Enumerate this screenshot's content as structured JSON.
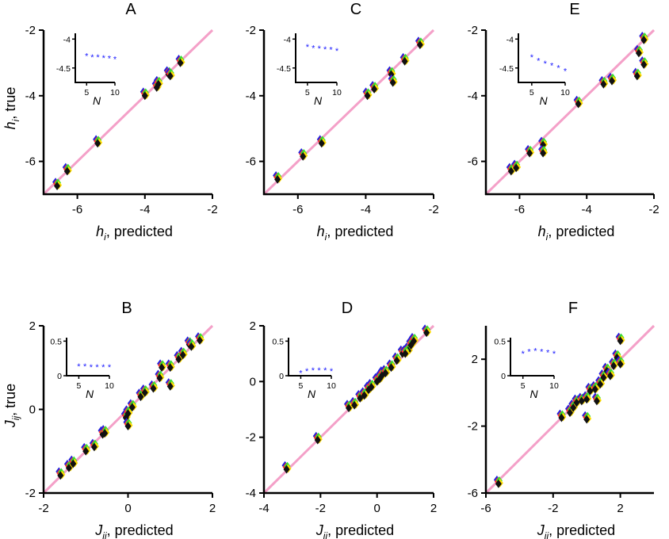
{
  "figure": {
    "colors": {
      "identity_line": "#f4a0c8",
      "marker_colors": [
        "#2222dd",
        "#ff3333",
        "#33dd33",
        "#ffdd00",
        "#111111"
      ],
      "inset_stars": "#1a1aff"
    }
  },
  "chart_data": [
    {
      "panel": "A",
      "type": "scatter",
      "xlabel": {
        "main": "h",
        "sub": "i",
        "suffix": ", predicted"
      },
      "ylabel": {
        "main": "h",
        "sub": "i",
        "suffix": ", true"
      },
      "xlim": [
        -7,
        -2
      ],
      "ylim": [
        -7,
        -2
      ],
      "xticks": [
        -6,
        -4,
        -2
      ],
      "yticks": [
        -6,
        -4,
        -2
      ],
      "tick_labels_x": [
        "-6",
        "-4",
        "-2"
      ],
      "tick_labels_y": [
        "-6",
        "-4",
        "-2"
      ],
      "identity_line": true,
      "points": [
        {
          "x": -6.6,
          "y": -6.75
        },
        {
          "x": -6.3,
          "y": -6.3
        },
        {
          "x": -5.4,
          "y": -5.45
        },
        {
          "x": -4.0,
          "y": -4.0
        },
        {
          "x": -3.65,
          "y": -3.75
        },
        {
          "x": -3.6,
          "y": -3.65
        },
        {
          "x": -3.3,
          "y": -3.35
        },
        {
          "x": -3.25,
          "y": -3.4
        },
        {
          "x": -2.95,
          "y": -3.0
        }
      ],
      "inset": {
        "xlim": [
          3,
          10
        ],
        "ylim": [
          -4.75,
          -3.9
        ],
        "xticks": [
          5,
          10
        ],
        "yticks": [
          -4,
          -4.5
        ],
        "tick_labels_x": [
          "5",
          "10"
        ],
        "tick_labels_y": [
          "-4",
          "-4.5"
        ],
        "xlabel": "N",
        "x": [
          5,
          6,
          7,
          8,
          9,
          10
        ],
        "y": [
          -4.28,
          -4.3,
          -4.3,
          -4.31,
          -4.32,
          -4.33
        ]
      }
    },
    {
      "panel": "C",
      "type": "scatter",
      "xlabel": {
        "main": "h",
        "sub": "i",
        "suffix": ", predicted"
      },
      "ylabel": {
        "main": "",
        "sub": "",
        "suffix": ""
      },
      "xlim": [
        -7,
        -2
      ],
      "ylim": [
        -7,
        -2
      ],
      "xticks": [
        -6,
        -4,
        -2
      ],
      "yticks": [
        -6,
        -4,
        -2
      ],
      "tick_labels_x": [
        "-6",
        "-4",
        "-2"
      ],
      "tick_labels_y": [
        "-6",
        "-4",
        "-2"
      ],
      "identity_line": true,
      "points": [
        {
          "x": -6.6,
          "y": -6.55
        },
        {
          "x": -5.85,
          "y": -5.85
        },
        {
          "x": -5.3,
          "y": -5.45
        },
        {
          "x": -3.95,
          "y": -4.0
        },
        {
          "x": -3.75,
          "y": -3.8
        },
        {
          "x": -3.25,
          "y": -3.35
        },
        {
          "x": -3.2,
          "y": -3.6
        },
        {
          "x": -2.85,
          "y": -2.95
        },
        {
          "x": -2.4,
          "y": -2.45
        }
      ],
      "inset": {
        "xlim": [
          3,
          10
        ],
        "ylim": [
          -4.75,
          -3.9
        ],
        "xticks": [
          5,
          10
        ],
        "yticks": [
          -4,
          -4.5
        ],
        "tick_labels_x": [
          "5",
          "10"
        ],
        "tick_labels_y": [
          "-4",
          "-4.5"
        ],
        "xlabel": "N",
        "x": [
          5,
          6,
          7,
          8,
          9,
          10
        ],
        "y": [
          -4.12,
          -4.14,
          -4.15,
          -4.16,
          -4.17,
          -4.19
        ]
      }
    },
    {
      "panel": "E",
      "type": "scatter",
      "xlabel": {
        "main": "h",
        "sub": "i",
        "suffix": ", predicted"
      },
      "ylabel": {
        "main": "",
        "sub": "",
        "suffix": ""
      },
      "xlim": [
        -7,
        -2
      ],
      "ylim": [
        -7,
        -2
      ],
      "xticks": [
        -6,
        -4,
        -2
      ],
      "yticks": [
        -6,
        -4,
        -2
      ],
      "tick_labels_x": [
        "-6",
        "-4",
        "-2"
      ],
      "tick_labels_y": [
        "-6",
        "-4",
        "-2"
      ],
      "identity_line": true,
      "points": [
        {
          "x": -6.25,
          "y": -6.3
        },
        {
          "x": -6.1,
          "y": -6.2
        },
        {
          "x": -5.7,
          "y": -5.75
        },
        {
          "x": -5.3,
          "y": -5.5
        },
        {
          "x": -5.3,
          "y": -5.75
        },
        {
          "x": -4.25,
          "y": -4.25
        },
        {
          "x": -3.5,
          "y": -3.65
        },
        {
          "x": -3.25,
          "y": -3.55
        },
        {
          "x": -2.45,
          "y": -2.7
        },
        {
          "x": -2.5,
          "y": -3.4
        },
        {
          "x": -2.3,
          "y": -3.05
        },
        {
          "x": -2.3,
          "y": -2.3
        }
      ],
      "inset": {
        "xlim": [
          3,
          10
        ],
        "ylim": [
          -4.75,
          -3.9
        ],
        "xticks": [
          5,
          10
        ],
        "yticks": [
          -4,
          -4.5
        ],
        "tick_labels_x": [
          "5",
          "10"
        ],
        "tick_labels_y": [
          "-4",
          "-4.5"
        ],
        "xlabel": "N",
        "x": [
          5,
          6,
          7,
          8,
          9,
          10
        ],
        "y": [
          -4.3,
          -4.36,
          -4.41,
          -4.44,
          -4.48,
          -4.54
        ]
      }
    },
    {
      "panel": "B",
      "type": "scatter",
      "xlabel": {
        "main": "J",
        "sub": "ij",
        "suffix": ", predicted"
      },
      "ylabel": {
        "main": "J",
        "sub": "ij",
        "suffix": ", true"
      },
      "xlim": [
        -2,
        2
      ],
      "ylim": [
        -2,
        2
      ],
      "xticks": [
        -2,
        0,
        2
      ],
      "yticks": [
        -2,
        0,
        2
      ],
      "tick_labels_x": [
        "-2",
        "0",
        "2"
      ],
      "tick_labels_y": [
        "-2",
        "0",
        "2"
      ],
      "identity_line": true,
      "points": [
        {
          "x": -1.6,
          "y": -1.58
        },
        {
          "x": -1.4,
          "y": -1.4
        },
        {
          "x": -1.3,
          "y": -1.3
        },
        {
          "x": -1.0,
          "y": -1.0
        },
        {
          "x": -0.8,
          "y": -0.9
        },
        {
          "x": -0.6,
          "y": -0.6
        },
        {
          "x": -0.55,
          "y": -0.57
        },
        {
          "x": -0.05,
          "y": -0.2
        },
        {
          "x": 0.0,
          "y": -0.1
        },
        {
          "x": 0.0,
          "y": -0.4
        },
        {
          "x": 0.1,
          "y": 0.05
        },
        {
          "x": 0.3,
          "y": 0.3
        },
        {
          "x": 0.4,
          "y": 0.4
        },
        {
          "x": 0.6,
          "y": 0.5
        },
        {
          "x": 0.75,
          "y": 0.75
        },
        {
          "x": 0.8,
          "y": 1.0
        },
        {
          "x": 1.0,
          "y": 1.0
        },
        {
          "x": 1.2,
          "y": 1.2
        },
        {
          "x": 1.3,
          "y": 1.3
        },
        {
          "x": 1.45,
          "y": 1.55
        },
        {
          "x": 1.5,
          "y": 1.5
        },
        {
          "x": 1.7,
          "y": 1.65
        },
        {
          "x": 1.0,
          "y": 0.55
        }
      ],
      "inset": {
        "xlim": [
          3,
          10
        ],
        "ylim": [
          0,
          0.55
        ],
        "xticks": [
          5,
          10
        ],
        "yticks": [
          0,
          0.5
        ],
        "tick_labels_x": [
          "5",
          "10"
        ],
        "tick_labels_y": [
          "0",
          "0.5"
        ],
        "xlabel": "N",
        "x": [
          5,
          6,
          7,
          8,
          9,
          10
        ],
        "y": [
          0.15,
          0.15,
          0.14,
          0.14,
          0.14,
          0.14
        ]
      }
    },
    {
      "panel": "D",
      "type": "scatter",
      "xlabel": {
        "main": "J",
        "sub": "ij",
        "suffix": ", predicted"
      },
      "ylabel": {
        "main": "",
        "sub": "",
        "suffix": ""
      },
      "xlim": [
        -4,
        2
      ],
      "ylim": [
        -4,
        2
      ],
      "xticks": [
        -4,
        -2,
        0,
        2
      ],
      "yticks": [
        -4,
        -2,
        0,
        2
      ],
      "tick_labels_x": [
        "-4",
        "-2",
        "0",
        "2"
      ],
      "tick_labels_y": [
        "-4",
        "-2",
        "0",
        "2"
      ],
      "identity_line": true,
      "points": [
        {
          "x": -3.2,
          "y": -3.15
        },
        {
          "x": -2.1,
          "y": -2.1
        },
        {
          "x": -1.0,
          "y": -0.95
        },
        {
          "x": -0.8,
          "y": -0.85
        },
        {
          "x": -0.6,
          "y": -0.6
        },
        {
          "x": -0.45,
          "y": -0.5
        },
        {
          "x": -0.3,
          "y": -0.3
        },
        {
          "x": -0.2,
          "y": -0.2
        },
        {
          "x": 0.0,
          "y": 0.0
        },
        {
          "x": 0.1,
          "y": 0.1
        },
        {
          "x": 0.2,
          "y": 0.25
        },
        {
          "x": 0.3,
          "y": 0.3
        },
        {
          "x": 0.5,
          "y": 0.5
        },
        {
          "x": 0.7,
          "y": 0.75
        },
        {
          "x": 0.9,
          "y": 1.0
        },
        {
          "x": 1.1,
          "y": 1.1
        },
        {
          "x": 1.2,
          "y": 1.3
        },
        {
          "x": 1.3,
          "y": 1.45
        },
        {
          "x": 1.75,
          "y": 1.75
        },
        {
          "x": 1.0,
          "y": 1.0
        }
      ],
      "inset": {
        "xlim": [
          3,
          10
        ],
        "ylim": [
          0,
          0.55
        ],
        "xticks": [
          5,
          10
        ],
        "yticks": [
          0,
          0.5
        ],
        "tick_labels_x": [
          "5",
          "10"
        ],
        "tick_labels_y": [
          "0",
          "0.5"
        ],
        "xlabel": "N",
        "x": [
          5,
          6,
          7,
          8,
          9,
          10
        ],
        "y": [
          0.05,
          0.08,
          0.09,
          0.09,
          0.09,
          0.08
        ]
      }
    },
    {
      "panel": "F",
      "type": "scatter",
      "xlabel": {
        "main": "J",
        "sub": "ij",
        "suffix": ", predicted"
      },
      "ylabel": {
        "main": "",
        "sub": "",
        "suffix": ""
      },
      "xlim": [
        -6,
        4
      ],
      "ylim": [
        -6,
        4
      ],
      "xticks": [
        -6,
        -2,
        2
      ],
      "yticks": [
        -6,
        -2,
        2
      ],
      "tick_labels_x": [
        "-6",
        "-2",
        "2"
      ],
      "tick_labels_y": [
        "-6",
        "-2",
        "2"
      ],
      "identity_line": true,
      "points": [
        {
          "x": -5.25,
          "y": -5.45
        },
        {
          "x": -1.5,
          "y": -1.5
        },
        {
          "x": -1.0,
          "y": -1.2
        },
        {
          "x": -0.8,
          "y": -0.9
        },
        {
          "x": -0.6,
          "y": -0.6
        },
        {
          "x": -0.3,
          "y": -0.5
        },
        {
          "x": 0.0,
          "y": -0.4
        },
        {
          "x": 0.0,
          "y": -1.6
        },
        {
          "x": 0.2,
          "y": 0.1
        },
        {
          "x": 0.5,
          "y": 0.2
        },
        {
          "x": 0.6,
          "y": -0.5
        },
        {
          "x": 0.8,
          "y": 0.5
        },
        {
          "x": 1.0,
          "y": 0.9
        },
        {
          "x": 1.2,
          "y": 1.3
        },
        {
          "x": 1.4,
          "y": 1.0
        },
        {
          "x": 1.6,
          "y": 1.6
        },
        {
          "x": 1.8,
          "y": 2.1
        },
        {
          "x": 2.0,
          "y": 1.7
        },
        {
          "x": 2.0,
          "y": 3.1
        }
      ],
      "inset": {
        "xlim": [
          3,
          10
        ],
        "ylim": [
          0,
          0.55
        ],
        "xticks": [
          5,
          10
        ],
        "yticks": [
          0,
          0.5
        ],
        "tick_labels_x": [
          "5",
          "10"
        ],
        "tick_labels_y": [
          "0",
          "0.5"
        ],
        "xlabel": "N",
        "x": [
          5,
          6,
          7,
          8,
          9,
          10
        ],
        "y": [
          0.33,
          0.36,
          0.37,
          0.36,
          0.35,
          0.33
        ]
      }
    }
  ]
}
